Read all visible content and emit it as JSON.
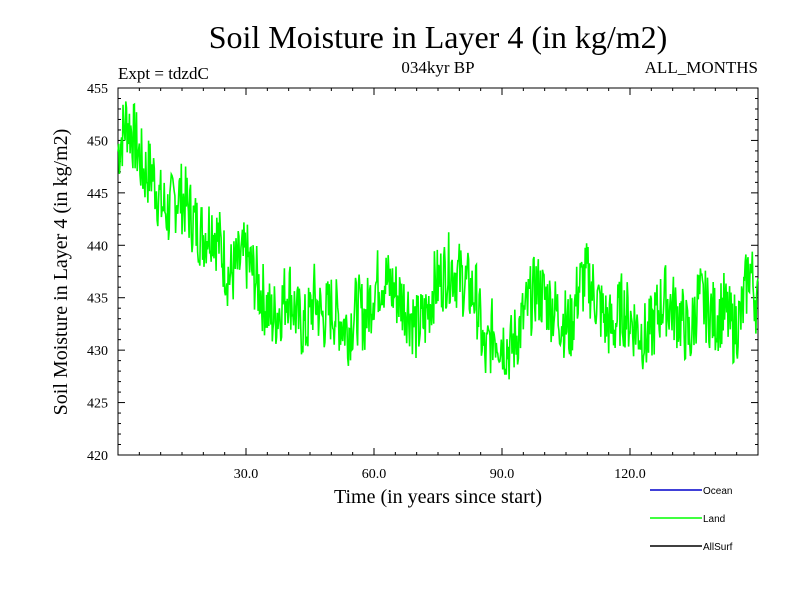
{
  "chart_data": {
    "type": "line",
    "title": "Soil Moisture in Layer 4 (in kg/m2)",
    "subtitle_left": "Expt = tdzdC",
    "subtitle_center": "034kyr BP",
    "subtitle_right": "ALL_MONTHS",
    "xlabel": "Time (in years since start)",
    "ylabel": "Soil Moisture in Layer 4 (in kg/m2)",
    "xlim": [
      0,
      150
    ],
    "ylim": [
      420,
      455
    ],
    "xticks": [
      30,
      60,
      90,
      120
    ],
    "xtick_labels": [
      "30.0",
      "60.0",
      "90.0",
      "120.0"
    ],
    "yticks": [
      420,
      425,
      430,
      435,
      440,
      445,
      450,
      455
    ],
    "ytick_labels": [
      "420",
      "425",
      "430",
      "435",
      "440",
      "445",
      "450",
      "455"
    ],
    "series": [
      {
        "name": "Land",
        "color": "#00ff00",
        "x": [
          0,
          2,
          4,
          6,
          8,
          10,
          12,
          14,
          16,
          18,
          20,
          22,
          24,
          26,
          28,
          30,
          32,
          34,
          36,
          38,
          40,
          42,
          44,
          46,
          48,
          50,
          52,
          54,
          56,
          58,
          60,
          62,
          64,
          66,
          68,
          70,
          72,
          74,
          76,
          78,
          80,
          82,
          84,
          86,
          88,
          90,
          92,
          94,
          96,
          98,
          100,
          102,
          104,
          106,
          108,
          110,
          112,
          114,
          116,
          118,
          120,
          122,
          124,
          126,
          128,
          130,
          132,
          134,
          136,
          138,
          140,
          142,
          144,
          146,
          148,
          150
        ],
        "values": [
          449,
          452,
          450,
          447,
          447,
          444,
          443,
          445,
          444,
          442,
          441,
          442,
          440,
          437,
          438,
          439,
          437,
          435,
          433,
          434,
          436,
          433,
          432,
          435,
          433,
          434,
          433,
          432,
          434,
          433,
          436,
          437,
          436,
          435,
          434,
          432,
          433,
          436,
          437,
          438,
          437,
          436,
          435,
          429,
          432,
          431,
          430,
          432,
          434,
          436,
          435,
          434,
          433,
          432,
          436,
          437,
          435,
          433,
          432,
          434,
          433,
          432,
          431,
          433,
          435,
          434,
          433,
          431,
          435,
          434,
          433,
          434,
          432,
          433,
          438,
          434
        ]
      }
    ],
    "legend": [
      {
        "label": "Ocean",
        "color": "#0000cc"
      },
      {
        "label": "Land",
        "color": "#00ff00"
      },
      {
        "label": "AllSurf",
        "color": "#000000"
      }
    ]
  }
}
